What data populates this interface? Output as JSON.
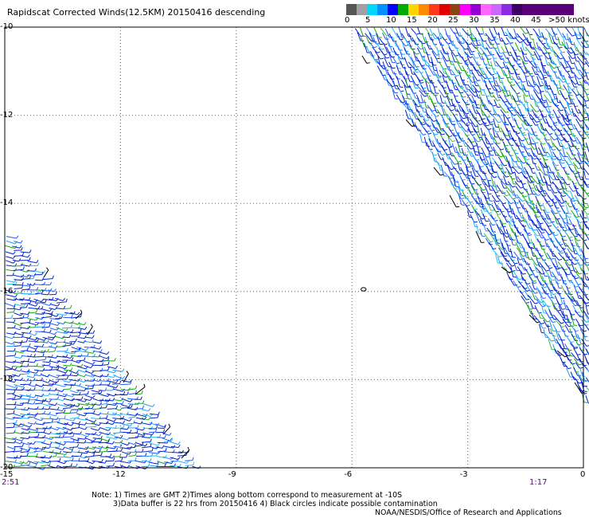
{
  "title": "Rapidscat Corrected Winds(12.5KM) 20150416 descending",
  "colorbar": {
    "labels": [
      "0",
      "5",
      "10",
      "15",
      "20",
      "25",
      "30",
      "35",
      "40",
      "45"
    ],
    "units": ">50 knots",
    "colors": [
      "#555555",
      "#999999",
      "#00e5ff",
      "#009cff",
      "#0000ff",
      "#00b000",
      "#ffd000",
      "#ff8c00",
      "#ff2020",
      "#e00000",
      "#8b4513",
      "#ff00ff",
      "#9400d3",
      "#ff66ff",
      "#cc66ff",
      "#8a2be2",
      "#000000",
      "#5a0078"
    ]
  },
  "map": {
    "y_ticks": [
      "-10",
      "-12",
      "-14",
      "-16",
      "-18",
      "-20"
    ],
    "x_ticks": [
      "-15",
      "-12",
      "-9",
      "-6",
      "-3",
      "0"
    ],
    "y_values": [
      -10,
      -12,
      -14,
      -16,
      -18,
      -20
    ],
    "x_values": [
      -15,
      -12,
      -9,
      -6,
      -3,
      0
    ],
    "xlim": [
      -15,
      0
    ],
    "ylim": [
      -20,
      -10
    ],
    "grid": "dotted",
    "vector_colors": [
      "#0022cc",
      "#1e5bff",
      "#1c9cff",
      "#26bdf0",
      "#1aa81a",
      "#40c040",
      "#000000"
    ],
    "contamination_circle": {
      "lon": -5.7,
      "lat": -15.95
    }
  },
  "times": {
    "left": "2:51",
    "right": "1:17"
  },
  "notes": {
    "line1": "Note: 1) Times are GMT 2)Times along bottom correspond to measurement at -10S",
    "line2": "3)Data buffer is 22 hrs from 20150416 4) Black circles indicate possible contamination"
  },
  "credit": "NOAA/NESDIS/Office of Research and Applications"
}
